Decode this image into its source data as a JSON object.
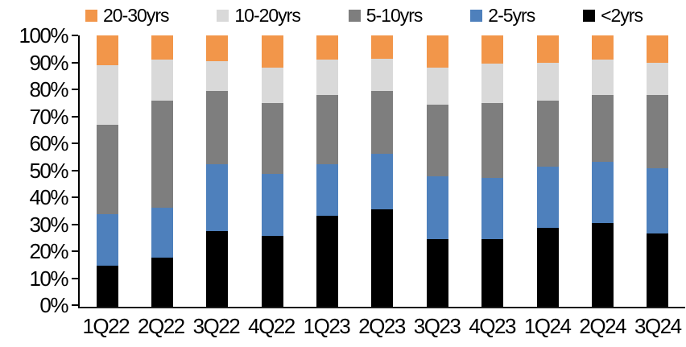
{
  "chart_data": {
    "type": "bar",
    "stacked": true,
    "stack_total": 100,
    "orientation": "vertical",
    "title": "",
    "unit": "%",
    "categories": [
      "1Q22",
      "2Q22",
      "3Q22",
      "4Q22",
      "1Q23",
      "2Q23",
      "3Q23",
      "4Q23",
      "1Q24",
      "2Q24",
      "3Q24"
    ],
    "series": [
      {
        "name": "<2yrs",
        "key": "lt2yrs",
        "color": "#000000",
        "values": [
          15,
          18,
          28,
          26,
          33.5,
          36,
          25,
          25,
          29,
          31,
          27
        ]
      },
      {
        "name": "2-5yrs",
        "key": "2to5yrs",
        "color": "#4E80BC",
        "values": [
          19,
          18.5,
          24.5,
          23,
          19,
          20.5,
          23,
          22.5,
          22.5,
          22.5,
          24
        ]
      },
      {
        "name": "5-10yrs",
        "key": "5to10yrs",
        "color": "#7E7E7E",
        "values": [
          33,
          39.5,
          27,
          26,
          25.5,
          23,
          26.5,
          27.5,
          24.5,
          24.5,
          27
        ]
      },
      {
        "name": "10-20yrs",
        "key": "10to20yrs",
        "color": "#D9D9D9",
        "values": [
          22,
          15,
          11,
          13,
          13,
          12,
          13.5,
          14.5,
          14,
          13,
          12
        ]
      },
      {
        "name": "20-30yrs",
        "key": "20to30yrs",
        "color": "#F2964A",
        "values": [
          11,
          9,
          9.5,
          12,
          9,
          8.5,
          12,
          10.5,
          10,
          9,
          10
        ]
      }
    ],
    "legend": {
      "position": "top",
      "items": [
        "20-30yrs",
        "10-20yrs",
        "5-10yrs",
        "2-5yrs",
        "<2yrs"
      ]
    },
    "y_axis": {
      "min": 0,
      "max": 100,
      "tick_interval": 10,
      "tick_labels": [
        "100%",
        "90%",
        "80%",
        "70%",
        "60%",
        "50%",
        "40%",
        "30%",
        "20%",
        "10%",
        "0%"
      ],
      "grid": false
    },
    "x_axis": {
      "label": ""
    },
    "colors": {
      "axis": "#000000",
      "background": "#ffffff"
    }
  }
}
